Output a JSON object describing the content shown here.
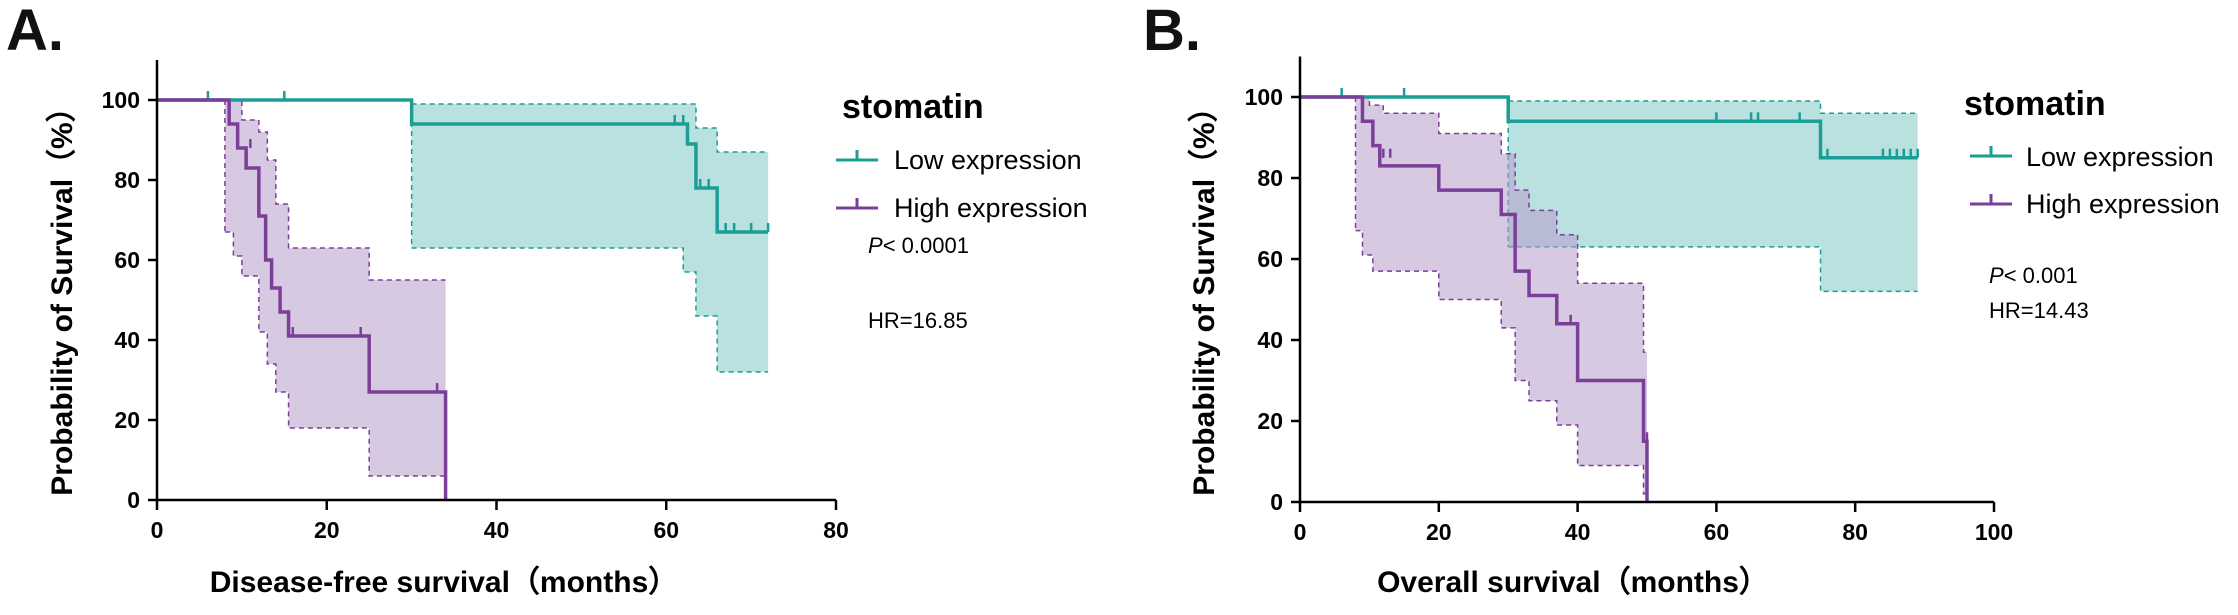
{
  "colors": {
    "low": "#1a9e96",
    "low_fill": "#7fc9c5",
    "high": "#7b3f98",
    "high_fill": "#b89ccb",
    "axis": "#000000"
  },
  "chart_data": [
    {
      "type": "line",
      "subtype": "kaplan-meier",
      "panel_label": "A.",
      "title": "",
      "xlabel": "Disease-free survival（months）",
      "ylabel": "Probability of Survival（%）",
      "xlim": [
        0,
        80
      ],
      "ylim": [
        0,
        110
      ],
      "xticks": [
        0,
        20,
        40,
        60,
        80
      ],
      "yticks": [
        0,
        20,
        40,
        60,
        80,
        100
      ],
      "legend_title": "stomatin",
      "legend_placement": "right",
      "stats": {
        "p_prefix": "P",
        "p_value": "< 0.0001",
        "hr": "HR=16.85"
      },
      "series": [
        {
          "name": "Low expression",
          "color_key": "low",
          "steps": [
            [
              0,
              100
            ],
            [
              30,
              94
            ],
            [
              62.5,
              89
            ],
            [
              63.5,
              78
            ],
            [
              66,
              67
            ],
            [
              72,
              67
            ]
          ],
          "ci_upper": [
            [
              30,
              99
            ],
            [
              62,
              99
            ],
            [
              63.5,
              93
            ],
            [
              66,
              87
            ],
            [
              72,
              87
            ]
          ],
          "ci_lower": [
            [
              30,
              63
            ],
            [
              62,
              57
            ],
            [
              63.5,
              46
            ],
            [
              66,
              32
            ],
            [
              72,
              32
            ]
          ],
          "censored": [
            [
              6,
              100
            ],
            [
              15,
              100
            ],
            [
              61,
              94
            ],
            [
              62,
              94
            ],
            [
              64,
              78
            ],
            [
              65,
              78
            ],
            [
              67,
              67
            ],
            [
              68,
              67
            ],
            [
              70,
              67
            ],
            [
              72,
              67
            ]
          ]
        },
        {
          "name": "High expression",
          "color_key": "high",
          "steps": [
            [
              0,
              100
            ],
            [
              8,
              100
            ],
            [
              8.5,
              94
            ],
            [
              9.5,
              88
            ],
            [
              10.5,
              83
            ],
            [
              12,
              71
            ],
            [
              12.8,
              60
            ],
            [
              13.5,
              53
            ],
            [
              14.5,
              47
            ],
            [
              15.5,
              41
            ],
            [
              25,
              27
            ],
            [
              34,
              27
            ],
            [
              34,
              0
            ]
          ],
          "ci_upper": [
            [
              8,
              100
            ],
            [
              10,
              95
            ],
            [
              12,
              92
            ],
            [
              13,
              85
            ],
            [
              14,
              74
            ],
            [
              15.5,
              63
            ],
            [
              25,
              55
            ],
            [
              34,
              55
            ]
          ],
          "ci_lower": [
            [
              8,
              67
            ],
            [
              9,
              61
            ],
            [
              10,
              56
            ],
            [
              12,
              42
            ],
            [
              13,
              34
            ],
            [
              14,
              27
            ],
            [
              15.5,
              18
            ],
            [
              25,
              6
            ],
            [
              34,
              6
            ]
          ],
          "censored": [
            [
              11,
              88
            ],
            [
              16,
              41
            ],
            [
              24,
              41
            ],
            [
              33,
              27
            ]
          ]
        }
      ]
    },
    {
      "type": "line",
      "subtype": "kaplan-meier",
      "panel_label": "B.",
      "title": "",
      "xlabel": "Overall survival（months）",
      "ylabel": "Probability of Survival（%）",
      "xlim": [
        0,
        100
      ],
      "ylim": [
        0,
        110
      ],
      "xticks": [
        0,
        20,
        40,
        60,
        80,
        100
      ],
      "yticks": [
        0,
        20,
        40,
        60,
        80,
        100
      ],
      "legend_title": "stomatin",
      "legend_placement": "right",
      "stats": {
        "p_prefix": "P",
        "p_value": "< 0.001",
        "hr": "HR=14.43"
      },
      "series": [
        {
          "name": "Low expression",
          "color_key": "low",
          "steps": [
            [
              0,
              100
            ],
            [
              30,
              94
            ],
            [
              75,
              85
            ],
            [
              89,
              85
            ]
          ],
          "ci_upper": [
            [
              30,
              99
            ],
            [
              75,
              96
            ],
            [
              89,
              96
            ]
          ],
          "ci_lower": [
            [
              30,
              63
            ],
            [
              75,
              52
            ],
            [
              89,
              52
            ]
          ],
          "censored": [
            [
              6,
              100
            ],
            [
              15,
              100
            ],
            [
              60,
              94
            ],
            [
              65,
              94
            ],
            [
              66,
              94
            ],
            [
              72,
              94
            ],
            [
              76,
              85
            ],
            [
              84,
              85
            ],
            [
              85,
              85
            ],
            [
              86,
              85
            ],
            [
              87,
              85
            ],
            [
              88,
              85
            ],
            [
              89,
              85
            ]
          ]
        },
        {
          "name": "High expression",
          "color_key": "high",
          "steps": [
            [
              0,
              100
            ],
            [
              8,
              100
            ],
            [
              9,
              94
            ],
            [
              10.5,
              88
            ],
            [
              11.5,
              83
            ],
            [
              20,
              77
            ],
            [
              29,
              71
            ],
            [
              31,
              57
            ],
            [
              33,
              51
            ],
            [
              37,
              44
            ],
            [
              40,
              30
            ],
            [
              49,
              30
            ],
            [
              49.5,
              15
            ],
            [
              50,
              7
            ],
            [
              50,
              0
            ]
          ],
          "ci_upper": [
            [
              8,
              100
            ],
            [
              10,
              98
            ],
            [
              12,
              96
            ],
            [
              20,
              91
            ],
            [
              29,
              86
            ],
            [
              31,
              77
            ],
            [
              33,
              72
            ],
            [
              37,
              66
            ],
            [
              40,
              54
            ],
            [
              49,
              54
            ],
            [
              49.5,
              37
            ],
            [
              50,
              37
            ]
          ],
          "ci_lower": [
            [
              8,
              67
            ],
            [
              9,
              61
            ],
            [
              10.5,
              57
            ],
            [
              20,
              50
            ],
            [
              29,
              43
            ],
            [
              31,
              30
            ],
            [
              33,
              25
            ],
            [
              37,
              19
            ],
            [
              40,
              9
            ],
            [
              49,
              9
            ],
            [
              49.5,
              2
            ],
            [
              50,
              0
            ]
          ],
          "censored": [
            [
              12,
              85
            ],
            [
              13,
              85
            ],
            [
              39,
              44
            ],
            [
              50,
              15
            ]
          ]
        }
      ]
    }
  ]
}
